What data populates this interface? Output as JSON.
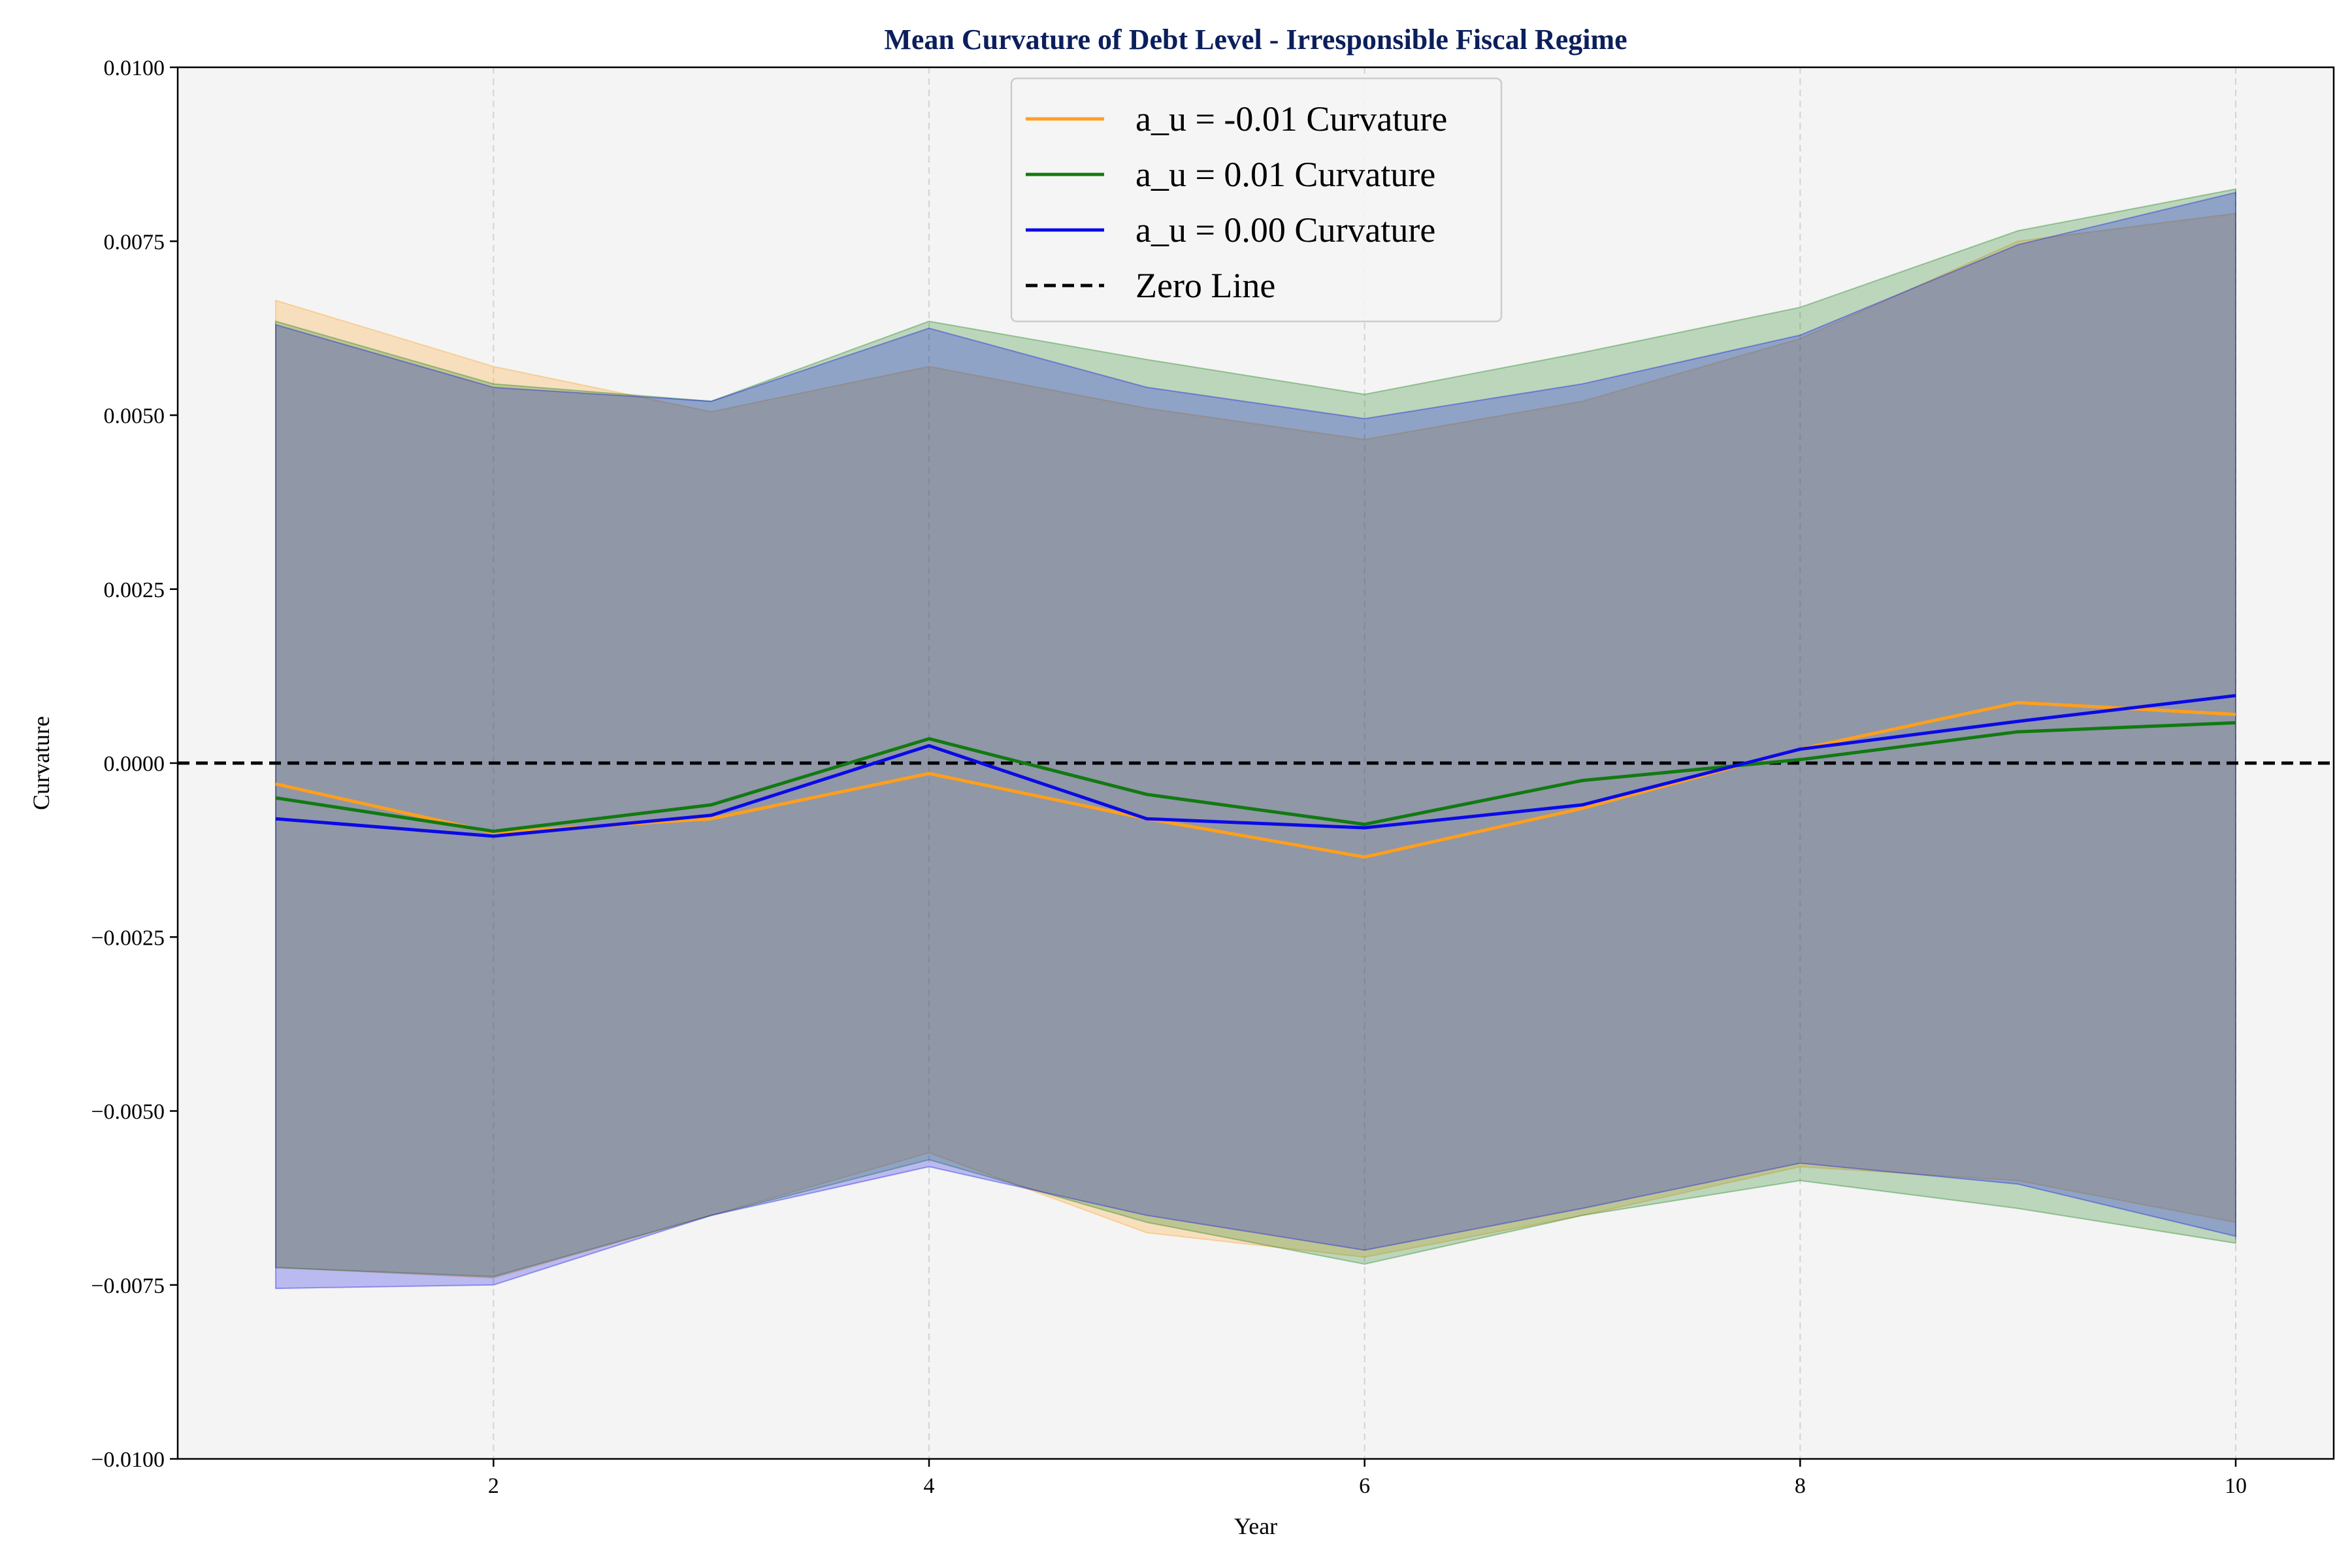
{
  "chart_data": {
    "type": "line",
    "title": "Mean Curvature of Debt Level - Irresponsible Fiscal Regime",
    "title_color": "#0b1f5c",
    "xlabel": "Year",
    "ylabel": "Curvature",
    "xlim": [
      0.55,
      10.45
    ],
    "ylim": [
      -0.01,
      0.01
    ],
    "x_ticks": [
      2,
      4,
      6,
      8,
      10
    ],
    "y_ticks": [
      -0.01,
      -0.0075,
      -0.005,
      -0.0025,
      0.0,
      0.0025,
      0.005,
      0.0075,
      0.01
    ],
    "x_tick_labels": [
      "2",
      "4",
      "6",
      "8",
      "10"
    ],
    "y_tick_labels": [
      "−0.0100",
      "−0.0075",
      "−0.0050",
      "−0.0025",
      "0.0000",
      "0.0025",
      "0.0050",
      "0.0075",
      "0.0100"
    ],
    "grid": "vertical dashed",
    "background_color": "#f4f4f4",
    "legend_position": "upper center",
    "x": [
      1,
      2,
      3,
      4,
      5,
      6,
      7,
      8,
      9,
      10
    ],
    "series": [
      {
        "name": "a_u = -0.01 Curvature",
        "color": "#ff9f1c",
        "values": [
          -0.0003,
          -0.001,
          -0.0008,
          -0.00015,
          -0.0008,
          -0.00135,
          -0.00065,
          0.0002,
          0.00087,
          0.0007
        ],
        "band_upper": [
          0.00665,
          0.0057,
          0.00505,
          0.0057,
          0.0051,
          0.00465,
          0.0052,
          0.0061,
          0.0075,
          0.0079
        ],
        "band_lower": [
          -0.00725,
          -0.0074,
          -0.0065,
          -0.0056,
          -0.00675,
          -0.0071,
          -0.0065,
          -0.0058,
          -0.006,
          -0.0066
        ]
      },
      {
        "name": "a_u = 0.01 Curvature",
        "color": "#117a11",
        "values": [
          -0.0005,
          -0.00098,
          -0.0006,
          0.00035,
          -0.00045,
          -0.00088,
          -0.00025,
          5e-05,
          0.00045,
          0.00058
        ],
        "band_upper": [
          0.00635,
          0.00545,
          0.0052,
          0.00635,
          0.0058,
          0.0053,
          0.0059,
          0.00655,
          0.00765,
          0.00825
        ],
        "band_lower": [
          -0.00725,
          -0.00738,
          -0.0065,
          -0.0057,
          -0.0066,
          -0.0072,
          -0.0065,
          -0.006,
          -0.0064,
          -0.0069
        ]
      },
      {
        "name": "a_u = 0.00 Curvature",
        "color": "#0a0ae6",
        "values": [
          -0.0008,
          -0.00105,
          -0.00075,
          0.00025,
          -0.0008,
          -0.00093,
          -0.0006,
          0.0002,
          0.0006,
          0.00097
        ],
        "band_upper": [
          0.0063,
          0.0054,
          0.0052,
          0.00625,
          0.0054,
          0.00495,
          0.00545,
          0.00615,
          0.00745,
          0.0082
        ],
        "band_lower": [
          -0.00755,
          -0.0075,
          -0.0065,
          -0.0058,
          -0.0065,
          -0.007,
          -0.0064,
          -0.00575,
          -0.00605,
          -0.0068
        ]
      }
    ],
    "reference_line": {
      "name": "Zero Line",
      "y": 0.0,
      "color": "#000000",
      "style": "dashed"
    }
  }
}
